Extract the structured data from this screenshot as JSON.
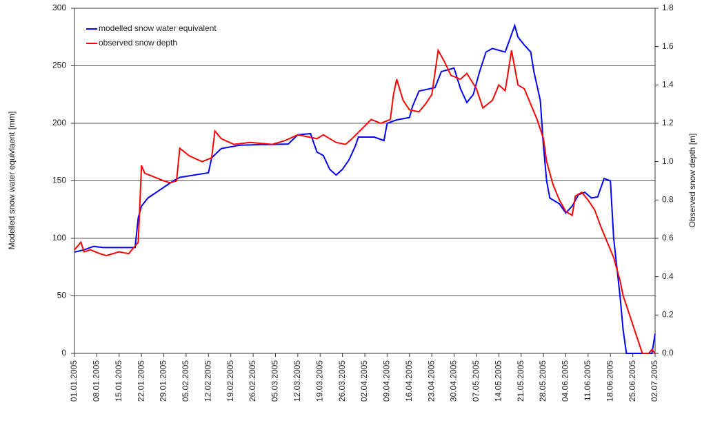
{
  "chart_data": {
    "type": "line",
    "y_label": "Modelled snow water equivlaent [mm]",
    "y2_label": "Observed snow depth [m]",
    "xlim": [
      "01.01.2005",
      "02.07.2005"
    ],
    "xticks": [
      "01.01.2005",
      "08.01.2005",
      "15.01.2005",
      "22.01.2005",
      "29.01.2005",
      "05.02.2005",
      "12.02.2005",
      "19.02.2005",
      "26.02.2005",
      "05.03.2005",
      "12.03.2005",
      "19.03.2005",
      "26.03.2005",
      "02.04.2005",
      "09.04.2005",
      "16.04.2005",
      "23.04.2005",
      "30.04.2005",
      "07.05.2005",
      "14.05.2005",
      "21.05.2005",
      "28.05.2005",
      "04.06.2005",
      "11.06.2005",
      "18.06.2005",
      "25.06.2005",
      "02.07.2005"
    ],
    "ylim": [
      0,
      300
    ],
    "yticks": [
      0,
      50,
      100,
      150,
      200,
      250,
      300
    ],
    "y2lim": [
      0,
      1.8
    ],
    "y2ticks": [
      {
        "value": 0,
        "label": "0.0"
      },
      0.2,
      0.4,
      0.6,
      0.8,
      {
        "value": 1,
        "label": "1.0"
      },
      1.2,
      1.4,
      1.6,
      1.8
    ],
    "grid": true,
    "legend": "top-left",
    "series": [
      {
        "name": "modelled snow water equivalent",
        "color": "#0000ff",
        "x": [
          "01.01.2005",
          "04.01.2005",
          "07.01.2005",
          "10.01.2005",
          "20.01.2005",
          "21.01.2005",
          "22.01.2005",
          "24.01.2005",
          "01.02.2005",
          "03.02.2005",
          "12.02.2005",
          "13.02.2005",
          "16.02.2005",
          "22.02.2005",
          "09.03.2005",
          "12.03.2005",
          "16.03.2005",
          "18.03.2005",
          "20.03.2005",
          "22.03.2005",
          "24.03.2005",
          "26.03.2005",
          "28.03.2005",
          "30.03.2005",
          "31.03.2005",
          "05.04.2005",
          "08.04.2005",
          "09.04.2005",
          "12.04.2005",
          "16.04.2005",
          "17.04.2005",
          "19.04.2005",
          "24.04.2005",
          "26.04.2005",
          "30.04.2005",
          "02.05.2005",
          "04.05.2005",
          "06.05.2005",
          "08.05.2005",
          "10.05.2005",
          "12.05.2005",
          "16.05.2005",
          "19.05.2005",
          "20.05.2005",
          "22.05.2005",
          "24.05.2005",
          "25.05.2005",
          "27.05.2005",
          "28.05.2005",
          "29.05.2005",
          "30.05.2005",
          "02.06.2005",
          "04.06.2005",
          "06.06.2005",
          "08.06.2005",
          "10.06.2005",
          "12.06.2005",
          "14.06.2005",
          "16.06.2005",
          "18.06.2005",
          "19.06.2005",
          "20.06.2005",
          "21.06.2005",
          "22.06.2005",
          "23.06.2005",
          "01.07.2005",
          "02.07.2005"
        ],
        "values": [
          88,
          90,
          93,
          92,
          92,
          118,
          128,
          135,
          150,
          153,
          157,
          170,
          178,
          181,
          182,
          190,
          191,
          175,
          172,
          160,
          155,
          160,
          168,
          180,
          188,
          188,
          185,
          200,
          203,
          205,
          215,
          228,
          231,
          245,
          248,
          230,
          218,
          225,
          245,
          262,
          265,
          262,
          285,
          275,
          268,
          262,
          245,
          220,
          180,
          150,
          135,
          130,
          122,
          128,
          138,
          140,
          135,
          136,
          152,
          150,
          100,
          75,
          50,
          20,
          0,
          0,
          17
        ]
      },
      {
        "name": "observed snow depth",
        "color": "#ff0000",
        "axis": "y2",
        "x": [
          "01.01.2005",
          "03.01.2005",
          "04.01.2005",
          "06.01.2005",
          "09.01.2005",
          "11.01.2005",
          "15.01.2005",
          "18.01.2005",
          "20.01.2005",
          "21.01.2005",
          "22.01.2005",
          "23.01.2005",
          "26.01.2005",
          "29.01.2005",
          "31.01.2005",
          "02.02.2005",
          "03.02.2005",
          "06.02.2005",
          "10.02.2005",
          "13.02.2005",
          "14.02.2005",
          "16.02.2005",
          "20.02.2005",
          "25.02.2005",
          "04.03.2005",
          "08.03.2005",
          "12.03.2005",
          "15.03.2005",
          "18.03.2005",
          "20.03.2005",
          "24.03.2005",
          "27.03.2005",
          "29.03.2005",
          "01.04.2005",
          "04.04.2005",
          "07.04.2005",
          "10.04.2005",
          "11.04.2005",
          "12.04.2005",
          "14.04.2005",
          "16.04.2005",
          "19.04.2005",
          "21.04.2005",
          "23.04.2005",
          "25.04.2005",
          "27.04.2005",
          "29.04.2005",
          "02.05.2005",
          "04.05.2005",
          "07.05.2005",
          "09.05.2005",
          "12.05.2005",
          "14.05.2005",
          "16.05.2005",
          "18.05.2005",
          "20.05.2005",
          "22.05.2005",
          "24.05.2005",
          "26.05.2005",
          "28.05.2005",
          "29.05.2005",
          "31.05.2005",
          "02.06.2005",
          "04.06.2005",
          "06.06.2005",
          "07.06.2005",
          "09.06.2005",
          "11.06.2005",
          "13.06.2005",
          "15.06.2005",
          "17.06.2005",
          "19.06.2005",
          "21.06.2005",
          "22.06.2005",
          "24.06.2005",
          "26.06.2005",
          "28.06.2005",
          "30.06.2005",
          "01.07.2005",
          "02.07.2005"
        ],
        "values": [
          0.54,
          0.58,
          0.53,
          0.54,
          0.52,
          0.51,
          0.53,
          0.52,
          0.56,
          0.58,
          0.98,
          0.94,
          0.92,
          0.9,
          0.89,
          0.9,
          1.07,
          1.03,
          1.0,
          1.02,
          1.16,
          1.12,
          1.09,
          1.1,
          1.09,
          1.11,
          1.14,
          1.13,
          1.12,
          1.14,
          1.1,
          1.09,
          1.12,
          1.17,
          1.22,
          1.2,
          1.22,
          1.35,
          1.43,
          1.32,
          1.27,
          1.26,
          1.3,
          1.35,
          1.58,
          1.52,
          1.45,
          1.43,
          1.46,
          1.38,
          1.28,
          1.32,
          1.4,
          1.37,
          1.58,
          1.4,
          1.38,
          1.3,
          1.22,
          1.12,
          1.0,
          0.88,
          0.8,
          0.74,
          0.72,
          0.82,
          0.84,
          0.8,
          0.75,
          0.66,
          0.58,
          0.5,
          0.38,
          0.3,
          0.2,
          0.1,
          0.0,
          0.0,
          0.02,
          0.0
        ]
      }
    ]
  }
}
